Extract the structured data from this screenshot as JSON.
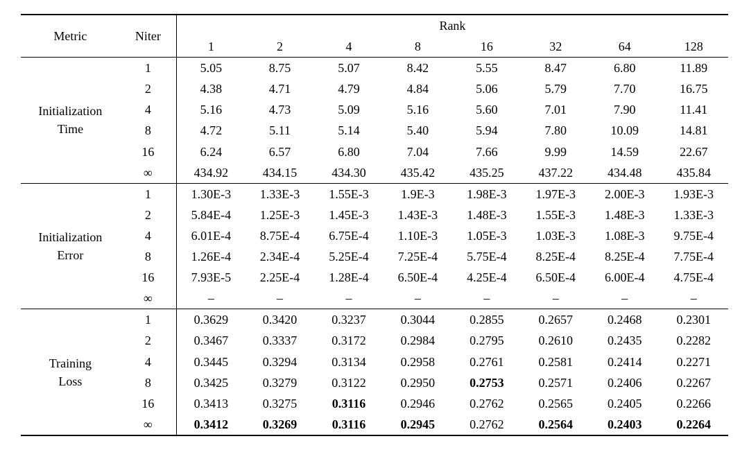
{
  "header": {
    "metric": "Metric",
    "niter": "Niter",
    "rank": "Rank",
    "rank_cols": [
      "1",
      "2",
      "4",
      "8",
      "16",
      "32",
      "64",
      "128"
    ]
  },
  "niter_labels": [
    "1",
    "2",
    "4",
    "8",
    "16",
    "∞"
  ],
  "sections": [
    {
      "metric_line1": "Initialization",
      "metric_line2": "Time",
      "rows": [
        {
          "niter": "1",
          "cells": [
            {
              "v": "5.05"
            },
            {
              "v": "8.75"
            },
            {
              "v": "5.07"
            },
            {
              "v": "8.42"
            },
            {
              "v": "5.55"
            },
            {
              "v": "8.47"
            },
            {
              "v": "6.80"
            },
            {
              "v": "11.89"
            }
          ]
        },
        {
          "niter": "2",
          "cells": [
            {
              "v": "4.38"
            },
            {
              "v": "4.71"
            },
            {
              "v": "4.79"
            },
            {
              "v": "4.84"
            },
            {
              "v": "5.06"
            },
            {
              "v": "5.79"
            },
            {
              "v": "7.70"
            },
            {
              "v": "16.75"
            }
          ]
        },
        {
          "niter": "4",
          "cells": [
            {
              "v": "5.16"
            },
            {
              "v": "4.73"
            },
            {
              "v": "5.09"
            },
            {
              "v": "5.16"
            },
            {
              "v": "5.60"
            },
            {
              "v": "7.01"
            },
            {
              "v": "7.90"
            },
            {
              "v": "11.41"
            }
          ]
        },
        {
          "niter": "8",
          "cells": [
            {
              "v": "4.72"
            },
            {
              "v": "5.11"
            },
            {
              "v": "5.14"
            },
            {
              "v": "5.40"
            },
            {
              "v": "5.94"
            },
            {
              "v": "7.80"
            },
            {
              "v": "10.09"
            },
            {
              "v": "14.81"
            }
          ]
        },
        {
          "niter": "16",
          "cells": [
            {
              "v": "6.24"
            },
            {
              "v": "6.57"
            },
            {
              "v": "6.80"
            },
            {
              "v": "7.04"
            },
            {
              "v": "7.66"
            },
            {
              "v": "9.99"
            },
            {
              "v": "14.59"
            },
            {
              "v": "22.67"
            }
          ]
        },
        {
          "niter": "∞",
          "cells": [
            {
              "v": "434.92"
            },
            {
              "v": "434.15"
            },
            {
              "v": "434.30"
            },
            {
              "v": "435.42"
            },
            {
              "v": "435.25"
            },
            {
              "v": "437.22"
            },
            {
              "v": "434.48"
            },
            {
              "v": "435.84"
            }
          ]
        }
      ]
    },
    {
      "metric_line1": "Initialization",
      "metric_line2": "Error",
      "rows": [
        {
          "niter": "1",
          "cells": [
            {
              "v": "1.30E-3"
            },
            {
              "v": "1.33E-3"
            },
            {
              "v": "1.55E-3"
            },
            {
              "v": "1.9E-3"
            },
            {
              "v": "1.98E-3"
            },
            {
              "v": "1.97E-3"
            },
            {
              "v": "2.00E-3"
            },
            {
              "v": "1.93E-3"
            }
          ]
        },
        {
          "niter": "2",
          "cells": [
            {
              "v": "5.84E-4"
            },
            {
              "v": "1.25E-3"
            },
            {
              "v": "1.45E-3"
            },
            {
              "v": "1.43E-3"
            },
            {
              "v": "1.48E-3"
            },
            {
              "v": "1.55E-3"
            },
            {
              "v": "1.48E-3"
            },
            {
              "v": "1.33E-3"
            }
          ]
        },
        {
          "niter": "4",
          "cells": [
            {
              "v": "6.01E-4"
            },
            {
              "v": "8.75E-4"
            },
            {
              "v": "6.75E-4"
            },
            {
              "v": "1.10E-3"
            },
            {
              "v": "1.05E-3"
            },
            {
              "v": "1.03E-3"
            },
            {
              "v": "1.08E-3"
            },
            {
              "v": "9.75E-4"
            }
          ]
        },
        {
          "niter": "8",
          "cells": [
            {
              "v": "1.26E-4"
            },
            {
              "v": "2.34E-4"
            },
            {
              "v": "5.25E-4"
            },
            {
              "v": "7.25E-4"
            },
            {
              "v": "5.75E-4"
            },
            {
              "v": "8.25E-4"
            },
            {
              "v": "8.25E-4"
            },
            {
              "v": "7.75E-4"
            }
          ]
        },
        {
          "niter": "16",
          "cells": [
            {
              "v": "7.93E-5"
            },
            {
              "v": "2.25E-4"
            },
            {
              "v": "1.28E-4"
            },
            {
              "v": "6.50E-4"
            },
            {
              "v": "4.25E-4"
            },
            {
              "v": "6.50E-4"
            },
            {
              "v": "6.00E-4"
            },
            {
              "v": "4.75E-4"
            }
          ]
        },
        {
          "niter": "∞",
          "cells": [
            {
              "v": "–"
            },
            {
              "v": "–"
            },
            {
              "v": "–"
            },
            {
              "v": "–"
            },
            {
              "v": "–"
            },
            {
              "v": "–"
            },
            {
              "v": "–"
            },
            {
              "v": "–"
            }
          ]
        }
      ]
    },
    {
      "metric_line1": "Training",
      "metric_line2": "Loss",
      "rows": [
        {
          "niter": "1",
          "cells": [
            {
              "v": "0.3629"
            },
            {
              "v": "0.3420"
            },
            {
              "v": "0.3237"
            },
            {
              "v": "0.3044"
            },
            {
              "v": "0.2855"
            },
            {
              "v": "0.2657"
            },
            {
              "v": "0.2468"
            },
            {
              "v": "0.2301"
            }
          ]
        },
        {
          "niter": "2",
          "cells": [
            {
              "v": "0.3467"
            },
            {
              "v": "0.3337"
            },
            {
              "v": "0.3172"
            },
            {
              "v": "0.2984"
            },
            {
              "v": "0.2795"
            },
            {
              "v": "0.2610"
            },
            {
              "v": "0.2435"
            },
            {
              "v": "0.2282"
            }
          ]
        },
        {
          "niter": "4",
          "cells": [
            {
              "v": "0.3445"
            },
            {
              "v": "0.3294"
            },
            {
              "v": "0.3134"
            },
            {
              "v": "0.2958"
            },
            {
              "v": "0.2761"
            },
            {
              "v": "0.2581"
            },
            {
              "v": "0.2414"
            },
            {
              "v": "0.2271"
            }
          ]
        },
        {
          "niter": "8",
          "cells": [
            {
              "v": "0.3425"
            },
            {
              "v": "0.3279"
            },
            {
              "v": "0.3122"
            },
            {
              "v": "0.2950"
            },
            {
              "v": "0.2753",
              "b": true
            },
            {
              "v": "0.2571"
            },
            {
              "v": "0.2406"
            },
            {
              "v": "0.2267"
            }
          ]
        },
        {
          "niter": "16",
          "cells": [
            {
              "v": "0.3413"
            },
            {
              "v": "0.3275"
            },
            {
              "v": "0.3116",
              "b": true
            },
            {
              "v": "0.2946"
            },
            {
              "v": "0.2762"
            },
            {
              "v": "0.2565"
            },
            {
              "v": "0.2405"
            },
            {
              "v": "0.2266"
            }
          ]
        },
        {
          "niter": "∞",
          "cells": [
            {
              "v": "0.3412",
              "b": true
            },
            {
              "v": "0.3269",
              "b": true
            },
            {
              "v": "0.3116",
              "b": true
            },
            {
              "v": "0.2945",
              "b": true
            },
            {
              "v": "0.2762"
            },
            {
              "v": "0.2564",
              "b": true
            },
            {
              "v": "0.2403",
              "b": true
            },
            {
              "v": "0.2264",
              "b": true
            }
          ]
        }
      ]
    }
  ],
  "style": {
    "font_family": "Times New Roman",
    "font_size_pt": 18,
    "text_color": "#000000",
    "background_color": "#ffffff",
    "rule_color": "#000000",
    "n_rank_cols": 8
  }
}
